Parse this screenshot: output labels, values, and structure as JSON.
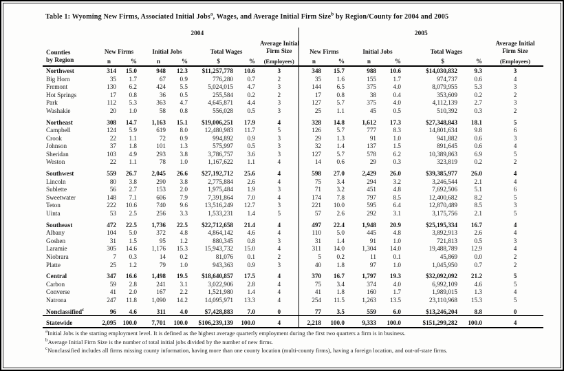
{
  "title": {
    "segments": [
      {
        "text": "Table 1: Wyoming New Firms, Associated Initial Jobs"
      },
      {
        "text": "a",
        "sup": true
      },
      {
        "text": ", Wages, and Average Initial Firm Size"
      },
      {
        "text": "b",
        "sup": true
      },
      {
        "text": " by Region/County for 2004 and 2005"
      }
    ]
  },
  "header": {
    "row_label_line1": "Counties",
    "row_label_line2": "by Region",
    "years": [
      "2004",
      "2005"
    ],
    "groups": [
      "New Firms",
      "Initial Jobs",
      "Total Wages"
    ],
    "size_lines": [
      "Average Initial",
      "Firm Size"
    ],
    "sub": [
      "n",
      "%",
      "n",
      "%",
      "$",
      "%",
      "(Employees)"
    ]
  },
  "rows": [
    {
      "label": "Northwest",
      "bold": true,
      "v": [
        "314",
        "15.0",
        "948",
        "12.3",
        "$11,257,778",
        "10.6",
        "3",
        "348",
        "15.7",
        "988",
        "10.6",
        "$14,030,832",
        "9.3",
        "3"
      ]
    },
    {
      "label": "Big Horn",
      "v": [
        "35",
        "1.7",
        "67",
        "0.9",
        "776,280",
        "0.7",
        "2",
        "35",
        "1.6",
        "155",
        "1.7",
        "974,737",
        "0.6",
        "4"
      ]
    },
    {
      "label": "Fremont",
      "v": [
        "130",
        "6.2",
        "424",
        "5.5",
        "5,024,015",
        "4.7",
        "3",
        "144",
        "6.5",
        "375",
        "4.0",
        "8,079,955",
        "5.3",
        "3"
      ]
    },
    {
      "label": "Hot Springs",
      "v": [
        "17",
        "0.8",
        "36",
        "0.5",
        "255,584",
        "0.2",
        "2",
        "17",
        "0.8",
        "38",
        "0.4",
        "353,609",
        "0.2",
        "2"
      ]
    },
    {
      "label": "Park",
      "v": [
        "112",
        "5.3",
        "363",
        "4.7",
        "4,645,871",
        "4.4",
        "3",
        "127",
        "5.7",
        "375",
        "4.0",
        "4,112,139",
        "2.7",
        "3"
      ]
    },
    {
      "label": "Washakie",
      "v": [
        "20",
        "1.0",
        "58",
        "0.8",
        "556,028",
        "0.5",
        "3",
        "25",
        "1.1",
        "45",
        "0.5",
        "510,392",
        "0.3",
        "2"
      ]
    },
    {
      "label": "Northeast",
      "bold": true,
      "gap": true,
      "v": [
        "308",
        "14.7",
        "1,163",
        "15.1",
        "$19,006,251",
        "17.9",
        "4",
        "328",
        "14.8",
        "1,612",
        "17.3",
        "$27,348,843",
        "18.1",
        "5"
      ]
    },
    {
      "label": "Campbell",
      "v": [
        "124",
        "5.9",
        "619",
        "8.0",
        "12,480,983",
        "11.7",
        "5",
        "126",
        "5.7",
        "777",
        "8.3",
        "14,801,634",
        "9.8",
        "6"
      ]
    },
    {
      "label": "Crook",
      "v": [
        "22",
        "1.1",
        "72",
        "0.9",
        "994,892",
        "0.9",
        "3",
        "29",
        "1.3",
        "91",
        "1.0",
        "941,882",
        "0.6",
        "3"
      ]
    },
    {
      "label": "Johnson",
      "v": [
        "37",
        "1.8",
        "101",
        "1.3",
        "575,997",
        "0.5",
        "3",
        "32",
        "1.4",
        "137",
        "1.5",
        "891,645",
        "0.6",
        "4"
      ]
    },
    {
      "label": "Sheridan",
      "v": [
        "103",
        "4.9",
        "293",
        "3.8",
        "3,786,757",
        "3.6",
        "3",
        "127",
        "5.7",
        "578",
        "6.2",
        "10,389,863",
        "6.9",
        "5"
      ]
    },
    {
      "label": "Weston",
      "v": [
        "22",
        "1.1",
        "78",
        "1.0",
        "1,167,622",
        "1.1",
        "4",
        "14",
        "0.6",
        "29",
        "0.3",
        "323,819",
        "0.2",
        "2"
      ]
    },
    {
      "label": "Southwest",
      "bold": true,
      "gap": true,
      "v": [
        "559",
        "26.7",
        "2,045",
        "26.6",
        "$27,192,712",
        "25.6",
        "4",
        "598",
        "27.0",
        "2,429",
        "26.0",
        "$39,385,977",
        "26.0",
        "4"
      ]
    },
    {
      "label": "Lincoln",
      "v": [
        "80",
        "3.8",
        "290",
        "3.8",
        "2,775,884",
        "2.6",
        "4",
        "75",
        "3.4",
        "294",
        "3.2",
        "3,246,544",
        "2.1",
        "4"
      ]
    },
    {
      "label": "Sublette",
      "v": [
        "56",
        "2.7",
        "153",
        "2.0",
        "1,975,484",
        "1.9",
        "3",
        "71",
        "3.2",
        "451",
        "4.8",
        "7,692,506",
        "5.1",
        "6"
      ]
    },
    {
      "label": "Sweetwater",
      "v": [
        "148",
        "7.1",
        "606",
        "7.9",
        "7,391,864",
        "7.0",
        "4",
        "174",
        "7.8",
        "797",
        "8.5",
        "12,400,682",
        "8.2",
        "5"
      ]
    },
    {
      "label": "Teton",
      "v": [
        "222",
        "10.6",
        "740",
        "9.6",
        "13,516,249",
        "12.7",
        "3",
        "221",
        "10.0",
        "595",
        "6.4",
        "12,870,489",
        "8.5",
        "3"
      ]
    },
    {
      "label": "Uinta",
      "v": [
        "53",
        "2.5",
        "256",
        "3.3",
        "1,533,231",
        "1.4",
        "5",
        "57",
        "2.6",
        "292",
        "3.1",
        "3,175,756",
        "2.1",
        "5"
      ]
    },
    {
      "label": "Southeast",
      "bold": true,
      "gap": true,
      "v": [
        "472",
        "22.5",
        "1,736",
        "22.5",
        "$22,712,658",
        "21.4",
        "4",
        "497",
        "22.4",
        "1,948",
        "20.9",
        "$25,195,334",
        "16.7",
        "4"
      ]
    },
    {
      "label": "Albany",
      "v": [
        "104",
        "5.0",
        "372",
        "4.8",
        "4,864,142",
        "4.6",
        "4",
        "110",
        "5.0",
        "445",
        "4.8",
        "3,892,913",
        "2.6",
        "4"
      ]
    },
    {
      "label": "Goshen",
      "v": [
        "31",
        "1.5",
        "95",
        "1.2",
        "880,345",
        "0.8",
        "3",
        "31",
        "1.4",
        "91",
        "1.0",
        "721,813",
        "0.5",
        "3"
      ]
    },
    {
      "label": "Laramie",
      "v": [
        "305",
        "14.6",
        "1,176",
        "15.3",
        "15,943,732",
        "15.0",
        "4",
        "311",
        "14.0",
        "1,304",
        "14.0",
        "19,488,789",
        "12.9",
        "4"
      ]
    },
    {
      "label": "Niobrara",
      "v": [
        "7",
        "0.3",
        "14",
        "0.2",
        "81,076",
        "0.1",
        "2",
        "5",
        "0.2",
        "11",
        "0.1",
        "45,869",
        "0.0",
        "2"
      ]
    },
    {
      "label": "Platte",
      "v": [
        "25",
        "1.2",
        "79",
        "1.0",
        "943,363",
        "0.9",
        "3",
        "40",
        "1.8",
        "97",
        "1.0",
        "1,045,950",
        "0.7",
        "2"
      ]
    },
    {
      "label": "Central",
      "bold": true,
      "gap": true,
      "v": [
        "347",
        "16.6",
        "1,498",
        "19.5",
        "$18,640,857",
        "17.5",
        "4",
        "370",
        "16.7",
        "1,797",
        "19.3",
        "$32,092,092",
        "21.2",
        "5"
      ]
    },
    {
      "label": "Carbon",
      "v": [
        "59",
        "2.8",
        "241",
        "3.1",
        "3,022,906",
        "2.8",
        "4",
        "75",
        "3.4",
        "374",
        "4.0",
        "6,992,109",
        "4.6",
        "5"
      ]
    },
    {
      "label": "Converse",
      "v": [
        "41",
        "2.0",
        "167",
        "2.2",
        "1,521,980",
        "1.4",
        "4",
        "41",
        "1.8",
        "160",
        "1.7",
        "1,989,015",
        "1.3",
        "4"
      ]
    },
    {
      "label": "Natrona",
      "v": [
        "247",
        "11.8",
        "1,090",
        "14.2",
        "14,095,971",
        "13.3",
        "4",
        "254",
        "11.5",
        "1,263",
        "13.5",
        "23,110,968",
        "15.3",
        "5"
      ]
    },
    {
      "label": "Nonclassified",
      "sup": "c",
      "bold": true,
      "gap": true,
      "rule": "thin",
      "v": [
        "96",
        "4.6",
        "311",
        "4.0",
        "$7,428,883",
        "7.0",
        "0",
        "77",
        "3.5",
        "559",
        "6.0",
        "$13,246,204",
        "8.8",
        "0"
      ]
    },
    {
      "label": "Statewide",
      "bold": true,
      "pad": true,
      "rule": "heavy",
      "v": [
        "2,095",
        "100.0",
        "7,701",
        "100.0",
        "$106,239,139",
        "100.0",
        "4",
        "2,218",
        "100.0",
        "9,333",
        "100.0",
        "$151,299,282",
        "100.0",
        "4"
      ]
    }
  ],
  "footnotes": [
    {
      "sup": "a",
      "text": "Initial Jobs is the starting employment level. It is defined as the highest average quarterly employment during the first two quarters a firm is in business."
    },
    {
      "sup": "b",
      "text": "Average Initial Firm Size is the number of total initial jobs divided by the number of new firms."
    },
    {
      "sup": "c",
      "text": "Nonclassified includes all firms missing county information, having more than one county location (multi-county firms), having a foreign location, and out-of-state firms."
    }
  ]
}
